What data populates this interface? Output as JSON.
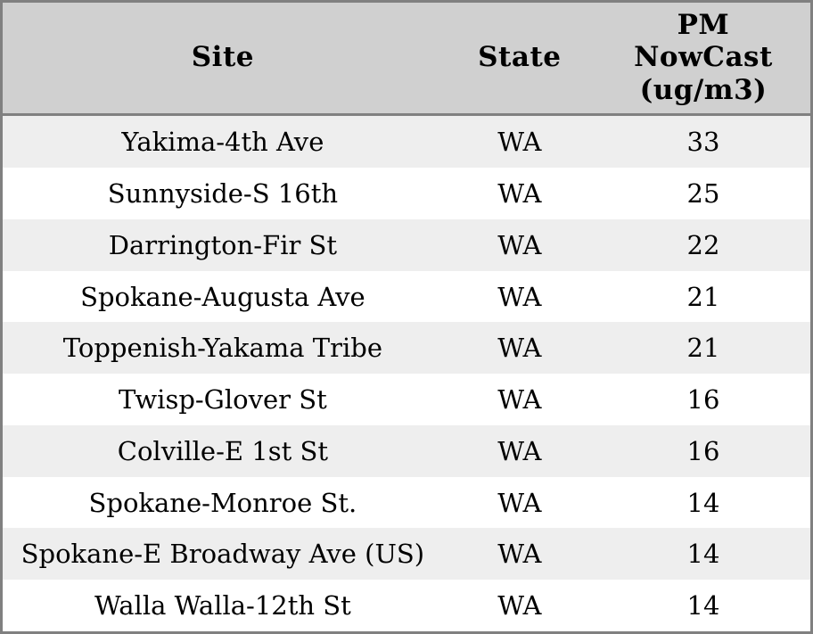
{
  "colors": {
    "header_bg": "#d0d0d0",
    "row_bg": "#ffffff",
    "row_alt_bg": "#eeeeee",
    "border_color": "#808080",
    "text_color": "#000000"
  },
  "table": {
    "columns": [
      {
        "id": "site",
        "label": "Site"
      },
      {
        "id": "state",
        "label": "State"
      },
      {
        "id": "pm",
        "label": "PM\nNowCast\n(ug/m3)"
      }
    ],
    "rows": [
      {
        "site": "Yakima-4th Ave",
        "state": "WA",
        "pm": "33"
      },
      {
        "site": "Sunnyside-S 16th",
        "state": "WA",
        "pm": "25"
      },
      {
        "site": "Darrington-Fir St",
        "state": "WA",
        "pm": "22"
      },
      {
        "site": "Spokane-Augusta Ave",
        "state": "WA",
        "pm": "21"
      },
      {
        "site": "Toppenish-Yakama Tribe",
        "state": "WA",
        "pm": "21"
      },
      {
        "site": "Twisp-Glover St",
        "state": "WA",
        "pm": "16"
      },
      {
        "site": "Colville-E 1st St",
        "state": "WA",
        "pm": "16"
      },
      {
        "site": "Spokane-Monroe St.",
        "state": "WA",
        "pm": "14"
      },
      {
        "site": "Spokane-E Broadway Ave (US)",
        "state": "WA",
        "pm": "14"
      },
      {
        "site": "Walla Walla-12th St",
        "state": "WA",
        "pm": "14"
      }
    ]
  },
  "chart_data": {
    "type": "table",
    "title": "",
    "columns": [
      "Site",
      "State",
      "PM NowCast (ug/m3)"
    ],
    "rows": [
      [
        "Yakima-4th Ave",
        "WA",
        33
      ],
      [
        "Sunnyside-S 16th",
        "WA",
        25
      ],
      [
        "Darrington-Fir St",
        "WA",
        22
      ],
      [
        "Spokane-Augusta Ave",
        "WA",
        21
      ],
      [
        "Toppenish-Yakama Tribe",
        "WA",
        21
      ],
      [
        "Twisp-Glover St",
        "WA",
        16
      ],
      [
        "Colville-E 1st St",
        "WA",
        16
      ],
      [
        "Spokane-Monroe St.",
        "WA",
        14
      ],
      [
        "Spokane-E Broadway Ave (US)",
        "WA",
        14
      ],
      [
        "Walla Walla-12th St",
        "WA",
        14
      ]
    ],
    "layout": {
      "header_background": "#d0d0d0",
      "alternating_row_backgrounds": [
        "#eeeeee",
        "#ffffff"
      ],
      "text_alignment": "center",
      "gridlines": "outer-border-and-header-rule-only"
    }
  }
}
